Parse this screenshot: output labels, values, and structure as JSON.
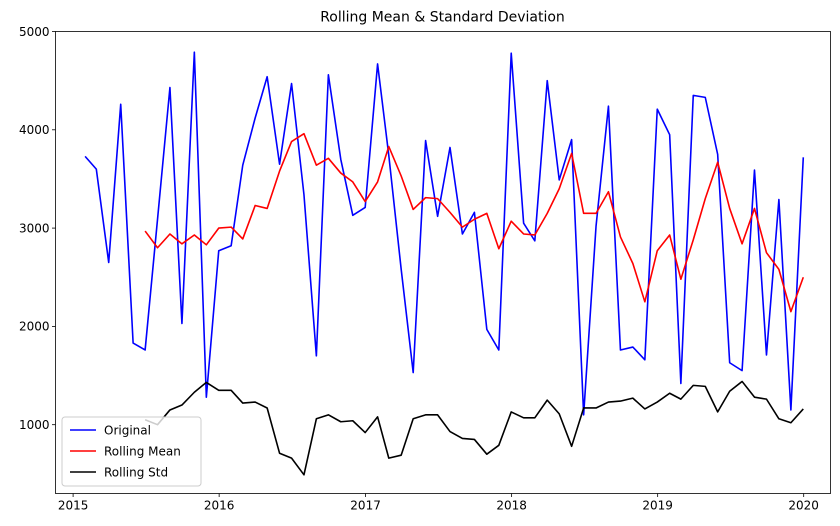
{
  "chart_data": {
    "type": "line",
    "title": "Rolling Mean & Standard Deviation",
    "xlabel": "",
    "ylabel": "",
    "xlim": [
      "2014-11-18",
      "2020-03-08"
    ],
    "ylim": [
      300,
      5000
    ],
    "x_ticks": [
      "2015",
      "2016",
      "2017",
      "2018",
      "2019",
      "2020"
    ],
    "y_ticks": [
      1000,
      2000,
      3000,
      4000,
      5000
    ],
    "grid": false,
    "legend_position": "lower-left",
    "x": [
      "2015-01-31",
      "2015-02-28",
      "2015-03-31",
      "2015-04-30",
      "2015-05-31",
      "2015-06-30",
      "2015-07-31",
      "2015-08-31",
      "2015-09-30",
      "2015-10-31",
      "2015-11-30",
      "2015-12-31",
      "2016-01-31",
      "2016-02-29",
      "2016-03-31",
      "2016-04-30",
      "2016-05-31",
      "2016-06-30",
      "2016-07-31",
      "2016-08-31",
      "2016-09-30",
      "2016-10-31",
      "2016-11-30",
      "2016-12-31",
      "2017-01-31",
      "2017-02-28",
      "2017-03-31",
      "2017-04-30",
      "2017-05-31",
      "2017-06-30",
      "2017-07-31",
      "2017-08-31",
      "2017-09-30",
      "2017-10-31",
      "2017-11-30",
      "2017-12-31",
      "2018-01-31",
      "2018-02-28",
      "2018-03-31",
      "2018-04-30",
      "2018-05-31",
      "2018-06-30",
      "2018-07-31",
      "2018-08-31",
      "2018-09-30",
      "2018-10-31",
      "2018-11-30",
      "2018-12-31",
      "2019-01-31",
      "2019-02-28",
      "2019-03-31",
      "2019-04-30",
      "2019-05-31",
      "2019-06-30",
      "2019-07-31",
      "2019-08-31",
      "2019-09-30",
      "2019-10-31",
      "2019-11-30",
      "2019-12-31"
    ],
    "series": [
      {
        "name": "Original",
        "color": "#0000ff",
        "values": [
          3730,
          3600,
          2650,
          4260,
          1830,
          1760,
          3090,
          4430,
          2030,
          4790,
          1280,
          2770,
          2820,
          3640,
          4120,
          4540,
          3650,
          4470,
          3340,
          1700,
          4560,
          3700,
          3130,
          3210,
          4670,
          3740,
          2580,
          1530,
          3890,
          3120,
          3820,
          2940,
          3160,
          1970,
          1760,
          4780,
          3050,
          2870,
          4500,
          3490,
          3900,
          1100,
          3020,
          4240,
          1760,
          1790,
          1660,
          4210,
          3950,
          1420,
          4350,
          4330,
          3750,
          1630,
          1550,
          3590,
          1710,
          3290,
          1150,
          3720
        ]
      },
      {
        "name": "Rolling Mean",
        "color": "#ff0000",
        "values": [
          null,
          null,
          null,
          null,
          null,
          2970,
          2800,
          2940,
          2840,
          2930,
          2830,
          3000,
          3010,
          2890,
          3230,
          3200,
          3580,
          3880,
          3960,
          3640,
          3710,
          3560,
          3470,
          3270,
          3470,
          3830,
          3530,
          3190,
          3310,
          3300,
          3160,
          3010,
          3090,
          3150,
          2790,
          3070,
          2940,
          2930,
          3150,
          3400,
          3760,
          3150,
          3150,
          3370,
          2910,
          2640,
          2250,
          2770,
          2930,
          2480,
          2880,
          3300,
          3670,
          3200,
          2840,
          3200,
          2750,
          2580,
          2150,
          2500
        ]
      },
      {
        "name": "Rolling Std",
        "color": "#000000",
        "values": [
          null,
          null,
          null,
          null,
          null,
          1050,
          1000,
          1150,
          1200,
          1330,
          1430,
          1350,
          1350,
          1220,
          1230,
          1170,
          710,
          660,
          490,
          1060,
          1100,
          1030,
          1040,
          920,
          1080,
          660,
          690,
          1060,
          1100,
          1100,
          930,
          860,
          850,
          700,
          790,
          1130,
          1070,
          1070,
          1250,
          1110,
          780,
          1170,
          1170,
          1230,
          1240,
          1270,
          1160,
          1230,
          1320,
          1260,
          1400,
          1390,
          1130,
          1340,
          1440,
          1280,
          1260,
          1060,
          1020,
          1160
        ]
      }
    ]
  }
}
